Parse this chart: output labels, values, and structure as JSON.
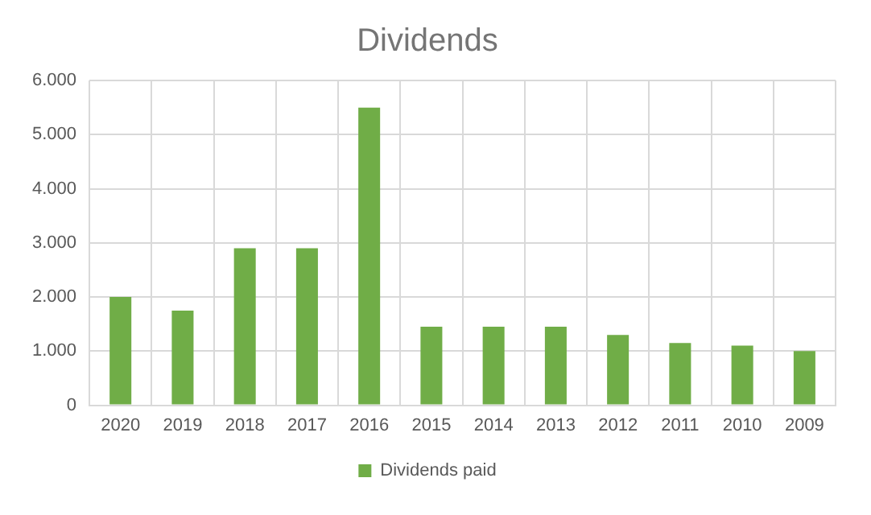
{
  "chart_data": {
    "type": "bar",
    "title": "Dividends",
    "categories": [
      "2020",
      "2019",
      "2018",
      "2017",
      "2016",
      "2015",
      "2014",
      "2013",
      "2012",
      "2011",
      "2010",
      "2009"
    ],
    "series": [
      {
        "name": "Dividends paid",
        "color": "#70ad47",
        "values": [
          2000,
          1750,
          2900,
          2900,
          5500,
          1450,
          1450,
          1450,
          1300,
          1150,
          1100,
          1000
        ]
      }
    ],
    "ylim": [
      0,
      6000
    ],
    "yticks": [
      0,
      {
        "value": 1000,
        "label": "1.000"
      },
      {
        "value": 2000,
        "label": "2.000"
      },
      {
        "value": 3000,
        "label": "3.000"
      },
      {
        "value": 4000,
        "label": "4.000"
      },
      {
        "value": 5000,
        "label": "5.000"
      },
      {
        "value": 6000,
        "label": "6.000"
      }
    ],
    "grid": true,
    "legend": "bottom"
  }
}
